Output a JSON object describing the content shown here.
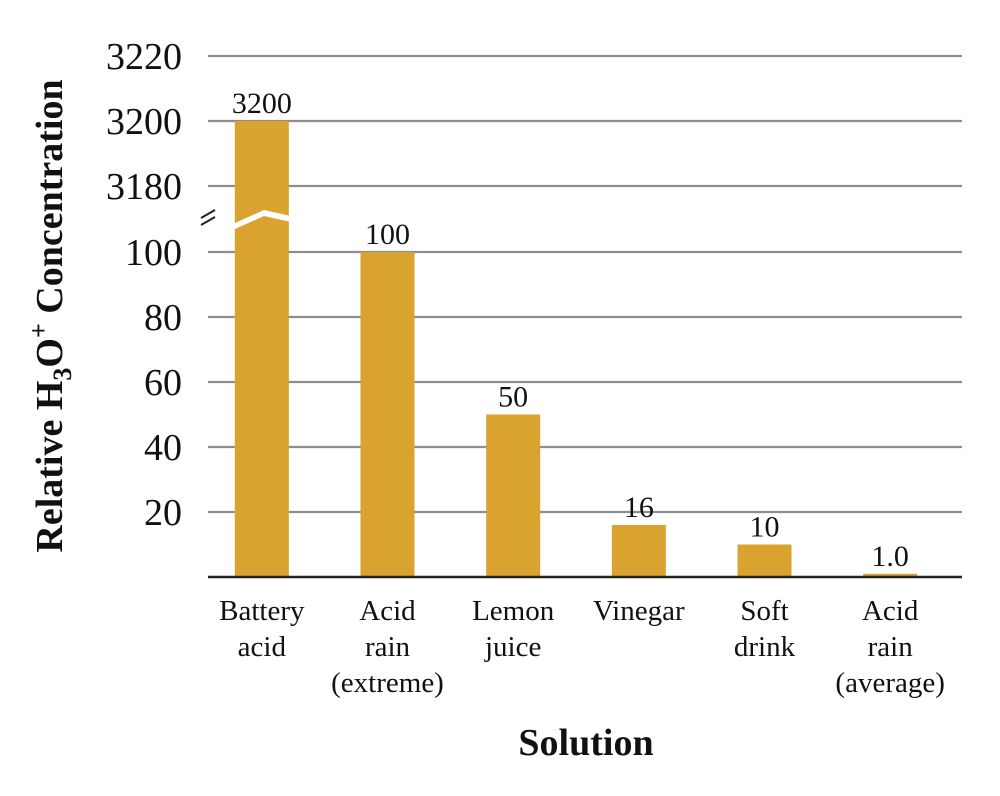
{
  "chart_data": {
    "type": "bar",
    "categories": [
      [
        "Battery",
        "acid"
      ],
      [
        "Acid",
        "rain",
        "(extreme)"
      ],
      [
        "Lemon",
        "juice"
      ],
      [
        "Vinegar"
      ],
      [
        "Soft",
        "drink"
      ],
      [
        "Acid",
        "rain",
        "(average)"
      ]
    ],
    "values": [
      3200,
      100,
      50,
      16,
      10,
      1.0
    ],
    "value_labels": [
      "3200",
      "100",
      "50",
      "16",
      "10",
      "1.0"
    ],
    "xlabel": "Solution",
    "ylabel": {
      "prefix": "Relative H",
      "subscript": "3",
      "middle": "O",
      "superscript": "+",
      "suffix": " Concentration"
    },
    "axis_break": true,
    "lower_ticks": [
      20,
      40,
      60,
      80,
      100
    ],
    "upper_ticks": [
      3180,
      3200,
      3220
    ],
    "lower_ylim": [
      0,
      100
    ],
    "upper_ylim": [
      3180,
      3220
    ],
    "grid": true,
    "bar_color": "#DAA22E",
    "grid_color": "#8A8F8D",
    "axis_color": "#222222"
  }
}
